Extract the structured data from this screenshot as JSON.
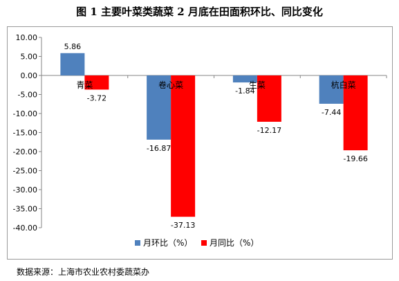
{
  "chart_data": {
    "type": "bar",
    "title": "图 1  主要叶菜类蔬菜 2 月底在田面积环比、同比变化",
    "categories": [
      "青菜",
      "卷心菜",
      "生菜",
      "杭白菜"
    ],
    "series": [
      {
        "name": "月环比（%）",
        "color": "#4f81bd",
        "values": [
          5.86,
          -16.87,
          -1.84,
          -7.44
        ]
      },
      {
        "name": "月同比（%）",
        "color": "#ff0000",
        "values": [
          -3.72,
          -37.13,
          -12.17,
          -19.66
        ]
      }
    ],
    "data_labels": [
      [
        "5.86",
        "-16.87",
        "-1.84",
        "-7.44"
      ],
      [
        "-3.72",
        "-37.13",
        "-12.17",
        "-19.66"
      ]
    ],
    "ylim": [
      -40,
      10
    ],
    "ytick_values": [
      10,
      5,
      0,
      -5,
      -10,
      -15,
      -20,
      -25,
      -30,
      -35,
      -40
    ],
    "ytick_labels": [
      "10.00",
      "5.00",
      "0.00",
      "-5.00",
      "-10.00",
      "-15.00",
      "-20.00",
      "-25.00",
      "-30.00",
      "-35.00",
      "-40.00"
    ],
    "grid": false,
    "legend_position": "bottom",
    "source": "数据来源：上海市农业农村委蔬菜办"
  }
}
